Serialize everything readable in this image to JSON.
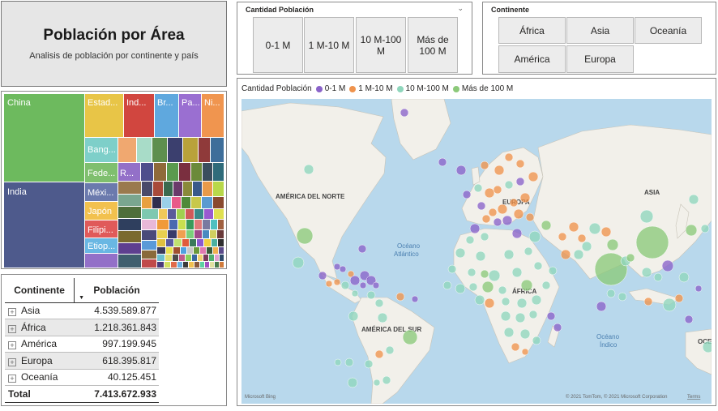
{
  "header": {
    "title": "Población por Área",
    "subtitle": "Analisis de población por continente y país"
  },
  "slicer_population": {
    "title": "Cantidad Población",
    "options": [
      "0-1 M",
      "1 M-10 M",
      "10 M-100 M",
      "Más de 100 M"
    ]
  },
  "slicer_continent": {
    "title": "Continente",
    "options": [
      "África",
      "Asia",
      "Oceanía",
      "América",
      "Europa"
    ]
  },
  "treemap": {
    "labels": {
      "china": "China",
      "india": "India",
      "usa": "Estad...",
      "indonesia": "Ind...",
      "brazil": "Br...",
      "pakistan": "Pa...",
      "nigeria": "Ni...",
      "bangladesh": "Bang...",
      "russia": "Fede...",
      "mexico": "Méxi...",
      "japan": "Japón",
      "philippines": "Filipi...",
      "ethiopia": "Etiop...",
      "r": "R..."
    },
    "colors": {
      "china": "#6dba5e",
      "india": "#4e5a8c",
      "usa": "#e8c547",
      "indonesia": "#d1463f",
      "brazil": "#5fa8de",
      "pakistan": "#9a6fd1",
      "nigeria": "#f0954f",
      "bangladesh": "#7ecfc9",
      "russia": "#7fbf6e",
      "mexico": "#6b7aad",
      "japan": "#f2c14e",
      "philippines": "#e05a5a",
      "ethiopia": "#69b7e3",
      "r": "#9370c8"
    }
  },
  "table": {
    "col_continent": "Continente",
    "col_population": "Población",
    "rows": [
      {
        "name": "Asia",
        "value": "4.539.589.877"
      },
      {
        "name": "África",
        "value": "1.218.361.843"
      },
      {
        "name": "América",
        "value": "997.199.945"
      },
      {
        "name": "Europa",
        "value": "618.395.817"
      },
      {
        "name": "Oceanía",
        "value": "40.125.451"
      }
    ],
    "total_label": "Total",
    "total_value": "7.413.672.933",
    "expand_symbol": "+",
    "sort_symbol": "▼"
  },
  "map": {
    "legend_title": "Cantidad Población",
    "legend": [
      {
        "label": "0-1 M",
        "color": "#8a63c9"
      },
      {
        "label": "1 M-10 M",
        "color": "#ef934d"
      },
      {
        "label": "10 M-100 M",
        "color": "#8fd6bc"
      },
      {
        "label": "Más de 100 M",
        "color": "#8cc97a"
      }
    ],
    "labels": {
      "north_america": "AMÉRICA DEL NORTE",
      "south_america": "AMÉRICA DEL SUR",
      "europe": "EUROPA",
      "asia": "ASIA",
      "africa": "ÁFRICA",
      "oceania": "OCEA",
      "atlantic_1": "Océano",
      "atlantic_2": "Atlántico",
      "indian_1": "Océano",
      "indian_2": "Índico"
    },
    "bing": "Microsoft Bing",
    "copyright": "© 2021 TomTom, © 2021 Microsoft Corporation",
    "terms": "Terms"
  }
}
